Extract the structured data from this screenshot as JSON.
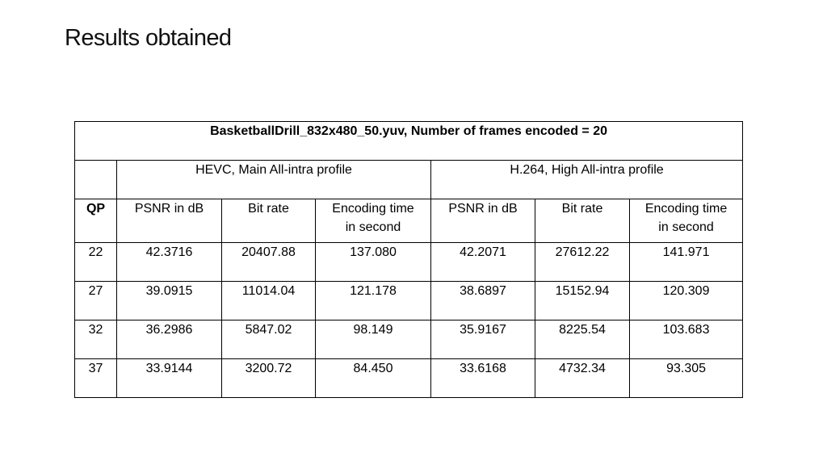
{
  "slide": {
    "title": "Results obtained"
  },
  "table": {
    "caption": "BasketballDrill_832x480_50.yuv, Number of frames encoded = 20",
    "group_headers": [
      "HEVC, Main All-intra profile",
      "H.264, High All-intra profile"
    ],
    "column_headers": [
      "QP",
      "PSNR in dB",
      "Bit rate",
      "Encoding time\nin second",
      "PSNR in dB",
      "Bit rate",
      "Encoding time\nin second"
    ],
    "rows": [
      [
        "22",
        "42.3716",
        "20407.88",
        "137.080",
        "42.2071",
        "27612.22",
        "141.971"
      ],
      [
        "27",
        "39.0915",
        "11014.04",
        "121.178",
        "38.6897",
        "15152.94",
        "120.309"
      ],
      [
        "32",
        "36.2986",
        "5847.02",
        "98.149",
        "35.9167",
        "8225.54",
        "103.683"
      ],
      [
        "37",
        "33.9144",
        "3200.72",
        "84.450",
        "33.6168",
        "4732.34",
        "93.305"
      ]
    ]
  }
}
